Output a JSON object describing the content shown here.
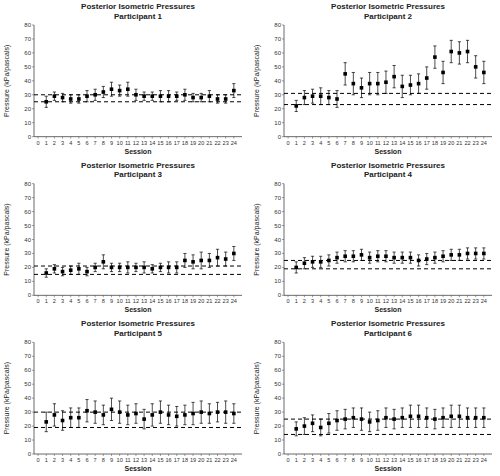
{
  "chart_data": [
    {
      "type": "errorbar",
      "title": "Posterior Isometric Pressures\nParticipant 1",
      "xlabel": "Session",
      "ylabel": "Pressure (kPa/pascals)",
      "x": [
        1,
        2,
        3,
        4,
        5,
        6,
        7,
        8,
        9,
        10,
        11,
        12,
        13,
        14,
        15,
        16,
        17,
        18,
        19,
        20,
        21,
        22,
        23,
        24
      ],
      "values": [
        25,
        29,
        28,
        27,
        27,
        29,
        30,
        32,
        34,
        33,
        34,
        30,
        29,
        29,
        29,
        29,
        29,
        30,
        28,
        28,
        29,
        27,
        27,
        33
      ],
      "errors": [
        4,
        3,
        3,
        3,
        3,
        4,
        4,
        4,
        5,
        4,
        5,
        4,
        3,
        3,
        4,
        4,
        3,
        4,
        3,
        3,
        4,
        3,
        3,
        5
      ],
      "baseline_upper": 30,
      "baseline_lower": 25,
      "xlim": [
        -0.5,
        25
      ],
      "xticks": [
        0,
        1,
        2,
        3,
        4,
        5,
        6,
        7,
        8,
        9,
        10,
        11,
        12,
        13,
        14,
        15,
        16,
        17,
        18,
        19,
        20,
        21,
        22,
        23,
        24
      ],
      "ylim": [
        0,
        80
      ],
      "yticks": [
        0,
        10,
        20,
        30,
        40,
        50,
        60,
        70,
        80
      ],
      "marker": "square",
      "color": "black",
      "line_style": "dashed",
      "grid": false
    },
    {
      "type": "errorbar",
      "title": "Posterior Isometric Pressures\nParticipant 2",
      "xlabel": "Session",
      "ylabel": "Pressure (kPa/pascals)",
      "x": [
        1,
        2,
        3,
        4,
        5,
        6,
        7,
        8,
        9,
        10,
        11,
        12,
        13,
        14,
        15,
        16,
        17,
        18,
        19,
        20,
        21,
        22,
        23,
        24
      ],
      "values": [
        22,
        28,
        29,
        29,
        28,
        27,
        45,
        38,
        35,
        38,
        38,
        39,
        43,
        36,
        37,
        38,
        42,
        57,
        46,
        61,
        60,
        61,
        50,
        46
      ],
      "errors": [
        4,
        5,
        5,
        6,
        5,
        6,
        8,
        8,
        7,
        8,
        8,
        8,
        8,
        8,
        7,
        7,
        8,
        8,
        8,
        8,
        8,
        8,
        8,
        8
      ],
      "baseline_upper": 31,
      "baseline_lower": 23,
      "xlim": [
        -0.5,
        25
      ],
      "xticks": [
        0,
        1,
        2,
        3,
        4,
        5,
        6,
        7,
        8,
        9,
        10,
        11,
        12,
        13,
        14,
        15,
        16,
        17,
        18,
        19,
        20,
        21,
        22,
        23,
        24
      ],
      "ylim": [
        0,
        80
      ],
      "yticks": [
        0,
        10,
        20,
        30,
        40,
        50,
        60,
        70,
        80
      ],
      "marker": "square",
      "color": "black",
      "line_style": "dashed",
      "grid": false
    },
    {
      "type": "errorbar",
      "title": "Posterior Isometric Pressures\nParticipant 3",
      "xlabel": "Session",
      "ylabel": "Pressure (kPa/pascals)",
      "x": [
        1,
        2,
        3,
        4,
        5,
        6,
        7,
        8,
        9,
        10,
        11,
        12,
        13,
        14,
        15,
        16,
        17,
        18,
        19,
        20,
        21,
        22,
        23,
        24
      ],
      "values": [
        16,
        19,
        17,
        18,
        19,
        17,
        20,
        24,
        20,
        20,
        20,
        20,
        20,
        19,
        20,
        20,
        20,
        25,
        24,
        25,
        25,
        27,
        26,
        30
      ],
      "errors": [
        3,
        3,
        3,
        3,
        4,
        3,
        3,
        5,
        3,
        3,
        4,
        3,
        4,
        3,
        3,
        4,
        4,
        5,
        5,
        6,
        5,
        6,
        5,
        5
      ],
      "baseline_upper": 21,
      "baseline_lower": 15,
      "xlim": [
        -0.5,
        25
      ],
      "xticks": [
        0,
        1,
        2,
        3,
        4,
        5,
        6,
        7,
        8,
        9,
        10,
        11,
        12,
        13,
        14,
        15,
        16,
        17,
        18,
        19,
        20,
        21,
        22,
        23,
        24
      ],
      "ylim": [
        0,
        80
      ],
      "yticks": [
        0,
        10,
        20,
        30,
        40,
        50,
        60,
        70,
        80
      ],
      "marker": "square",
      "color": "black",
      "line_style": "dashed",
      "grid": false
    },
    {
      "type": "errorbar",
      "title": "Posterior Isometric Pressures\nParticipant 4",
      "xlabel": "Session",
      "ylabel": "Pressure (kPa/pascals)",
      "x": [
        1,
        2,
        3,
        4,
        5,
        6,
        7,
        8,
        9,
        10,
        11,
        12,
        13,
        14,
        15,
        16,
        17,
        18,
        19,
        20,
        21,
        22,
        23,
        24
      ],
      "values": [
        20,
        23,
        24,
        24,
        25,
        27,
        28,
        28,
        29,
        27,
        28,
        28,
        27,
        27,
        27,
        25,
        26,
        27,
        28,
        29,
        29,
        30,
        30,
        30
      ],
      "errors": [
        4,
        4,
        4,
        4,
        4,
        4,
        4,
        4,
        4,
        4,
        4,
        4,
        4,
        4,
        4,
        4,
        4,
        4,
        4,
        4,
        4,
        4,
        4,
        4
      ],
      "baseline_upper": 25,
      "baseline_lower": 19,
      "xlim": [
        -0.5,
        25
      ],
      "xticks": [
        0,
        1,
        2,
        3,
        4,
        5,
        6,
        7,
        8,
        9,
        10,
        11,
        12,
        13,
        14,
        15,
        16,
        17,
        18,
        19,
        20,
        21,
        22,
        23,
        24
      ],
      "ylim": [
        0,
        80
      ],
      "yticks": [
        0,
        10,
        20,
        30,
        40,
        50,
        60,
        70,
        80
      ],
      "marker": "square",
      "color": "black",
      "line_style": "dashed",
      "grid": false
    },
    {
      "type": "errorbar",
      "title": "Posterior Isometric Pressures\nParticipant 5",
      "xlabel": "Session",
      "ylabel": "Pressure (kPa/pascals)",
      "x": [
        1,
        2,
        3,
        4,
        5,
        6,
        7,
        8,
        9,
        10,
        11,
        12,
        13,
        14,
        15,
        16,
        17,
        18,
        19,
        20,
        21,
        22,
        23,
        24
      ],
      "values": [
        23,
        28,
        24,
        26,
        26,
        31,
        30,
        28,
        32,
        30,
        28,
        29,
        25,
        28,
        30,
        28,
        27,
        28,
        29,
        30,
        29,
        30,
        30,
        29
      ],
      "errors": [
        7,
        8,
        7,
        7,
        7,
        8,
        8,
        7,
        8,
        8,
        7,
        7,
        7,
        8,
        8,
        7,
        7,
        7,
        8,
        8,
        7,
        7,
        8,
        7
      ],
      "baseline_upper": 30,
      "baseline_lower": 19,
      "xlim": [
        -0.5,
        25
      ],
      "xticks": [
        0,
        1,
        2,
        3,
        4,
        5,
        6,
        7,
        8,
        9,
        10,
        11,
        12,
        13,
        14,
        15,
        16,
        17,
        18,
        19,
        20,
        21,
        22,
        23,
        24
      ],
      "ylim": [
        0,
        80
      ],
      "yticks": [
        0,
        10,
        20,
        30,
        40,
        50,
        60,
        70,
        80
      ],
      "marker": "square",
      "color": "black",
      "line_style": "dashed",
      "grid": false
    },
    {
      "type": "errorbar",
      "title": "Posterior Isometric Pressures\nParticipant 6",
      "xlabel": "Session",
      "ylabel": "Pressure (kPa/pascals)",
      "x": [
        1,
        2,
        3,
        4,
        5,
        6,
        7,
        8,
        9,
        10,
        11,
        12,
        13,
        14,
        15,
        16,
        17,
        18,
        19,
        20,
        21,
        22,
        23,
        24
      ],
      "values": [
        18,
        20,
        22,
        19,
        22,
        24,
        25,
        26,
        25,
        23,
        24,
        26,
        25,
        26,
        27,
        27,
        26,
        25,
        26,
        27,
        27,
        26,
        26,
        26
      ],
      "errors": [
        5,
        6,
        6,
        6,
        7,
        7,
        7,
        7,
        8,
        7,
        7,
        7,
        7,
        7,
        8,
        8,
        7,
        7,
        7,
        8,
        8,
        7,
        7,
        7
      ],
      "baseline_upper": 25,
      "baseline_lower": 14,
      "xlim": [
        -0.5,
        25
      ],
      "xticks": [
        0,
        1,
        2,
        3,
        4,
        5,
        6,
        7,
        8,
        9,
        10,
        11,
        12,
        13,
        14,
        15,
        16,
        17,
        18,
        19,
        20,
        21,
        22,
        23,
        24
      ],
      "ylim": [
        0,
        80
      ],
      "yticks": [
        0,
        10,
        20,
        30,
        40,
        50,
        60,
        70,
        80
      ],
      "marker": "square",
      "color": "black",
      "line_style": "dashed",
      "grid": false
    }
  ]
}
